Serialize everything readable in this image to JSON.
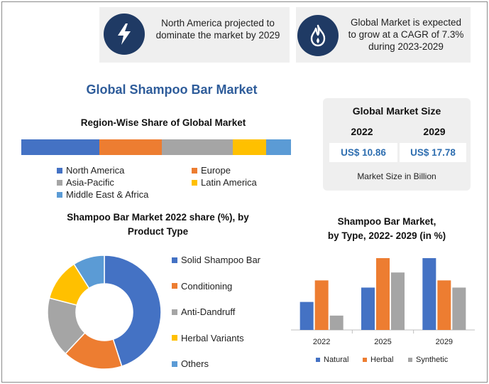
{
  "callouts": [
    {
      "text_line1": "North America projected to",
      "text_line2": "dominate the market by 2029",
      "icon": "lightning-icon"
    },
    {
      "text_line1": "Global Market is expected",
      "text_line2": "to grow at a CAGR of 7.3%",
      "text_line3": "during 2023-2029",
      "icon": "flame-icon"
    }
  ],
  "main_title": "Global Shampoo Bar Market",
  "market_size": {
    "title": "Global Market Size",
    "year1": "2022",
    "year2": "2029",
    "value1": "US$ 10.86",
    "value2": "US$ 17.78",
    "note": "Market Size in Billion"
  },
  "colors": {
    "blue": "#4472c4",
    "orange": "#ed7d31",
    "gray": "#a5a5a5",
    "yellow": "#ffc000",
    "light_blue": "#5b9bd5",
    "navy": "#1f3a64"
  },
  "chart_data": [
    {
      "type": "bar",
      "orientation": "horizontal-stacked",
      "title": "Region-Wise Share of Global Market",
      "series": [
        {
          "name": "North America",
          "value": 29,
          "color": "#4472c4"
        },
        {
          "name": "Europe",
          "value": 23,
          "color": "#ed7d31"
        },
        {
          "name": "Asia-Pacific",
          "value": 26.5,
          "color": "#a5a5a5"
        },
        {
          "name": "Latin America",
          "value": 12.4,
          "color": "#ffc000"
        },
        {
          "name": "Middle East & Africa",
          "value": 9.1,
          "color": "#5b9bd5"
        }
      ],
      "legend": "bottom"
    },
    {
      "type": "pie",
      "variant": "donut",
      "title_line1": "Shampoo Bar Market 2022 share (%), by",
      "title_line2": "Product Type",
      "categories": [
        "Solid Shampoo Bar",
        "Conditioning",
        "Anti-Dandruff",
        "Herbal Variants",
        "Others"
      ],
      "values": [
        45,
        17,
        17,
        12,
        9
      ],
      "colors": [
        "#4472c4",
        "#ed7d31",
        "#a5a5a5",
        "#ffc000",
        "#5b9bd5"
      ],
      "legend": "right"
    },
    {
      "type": "bar",
      "title_line1": "Shampoo Bar Market,",
      "title_line2": "by Type, 2022- 2029 (in %)",
      "categories": [
        "2022",
        "2025",
        "2029"
      ],
      "series": [
        {
          "name": "Natural",
          "values": [
            39,
            59,
            100
          ],
          "color": "#4472c4"
        },
        {
          "name": "Herbal",
          "values": [
            69,
            100,
            69
          ],
          "color": "#ed7d31"
        },
        {
          "name": "Synthetic",
          "values": [
            20,
            80,
            59
          ],
          "color": "#a5a5a5"
        }
      ],
      "ylim": [
        0,
        100
      ],
      "grid": false,
      "legend": "bottom"
    }
  ]
}
